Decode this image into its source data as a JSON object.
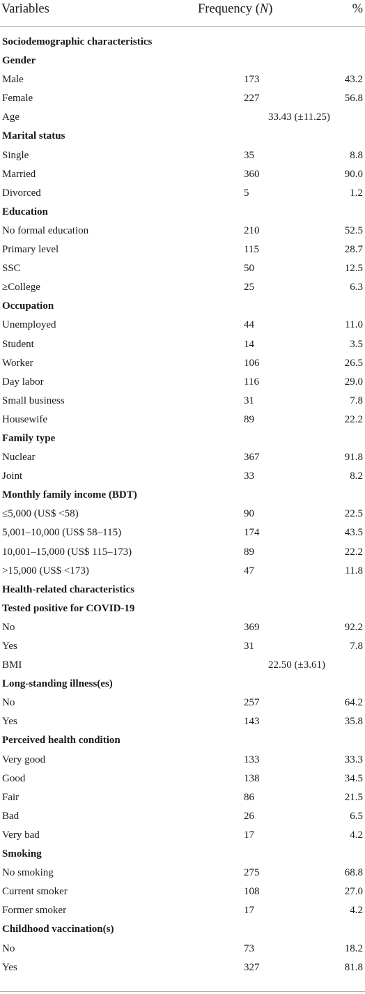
{
  "header": {
    "variables": "Variables",
    "frequency": "Frequency (",
    "frequency_n": "N",
    "frequency_close": ")",
    "percent": "%"
  },
  "rows": [
    {
      "type": "section",
      "label": "Sociodemographic characteristics"
    },
    {
      "type": "group",
      "label": "Gender"
    },
    {
      "type": "data",
      "label": "Male",
      "n": "173",
      "pct": "43.2"
    },
    {
      "type": "data",
      "label": "Female",
      "n": "227",
      "pct": "56.8"
    },
    {
      "type": "groupval",
      "label": "Age",
      "value": "33.43 (±11.25)"
    },
    {
      "type": "group",
      "label": "Marital status"
    },
    {
      "type": "data",
      "label": "Single",
      "n": "35",
      "pct": "8.8"
    },
    {
      "type": "data",
      "label": "Married",
      "n": "360",
      "pct": "90.0"
    },
    {
      "type": "data",
      "label": "Divorced",
      "n": "5",
      "pct": "1.2"
    },
    {
      "type": "group",
      "label": "Education"
    },
    {
      "type": "data",
      "label": "No formal education",
      "n": "210",
      "pct": "52.5"
    },
    {
      "type": "data",
      "label": "Primary level",
      "n": "115",
      "pct": "28.7"
    },
    {
      "type": "data",
      "label": "SSC",
      "n": "50",
      "pct": "12.5"
    },
    {
      "type": "data",
      "label": "≥College",
      "n": "25",
      "pct": "6.3"
    },
    {
      "type": "group",
      "label": "Occupation"
    },
    {
      "type": "data",
      "label": "Unemployed",
      "n": "44",
      "pct": "11.0"
    },
    {
      "type": "data",
      "label": "Student",
      "n": "14",
      "pct": "3.5"
    },
    {
      "type": "data",
      "label": "Worker",
      "n": "106",
      "pct": "26.5"
    },
    {
      "type": "data",
      "label": "Day labor",
      "n": "116",
      "pct": "29.0"
    },
    {
      "type": "data",
      "label": "Small business",
      "n": "31",
      "pct": "7.8"
    },
    {
      "type": "data",
      "label": "Housewife",
      "n": "89",
      "pct": "22.2"
    },
    {
      "type": "group",
      "label": "Family type"
    },
    {
      "type": "data",
      "label": "Nuclear",
      "n": "367",
      "pct": "91.8"
    },
    {
      "type": "data",
      "label": "Joint",
      "n": "33",
      "pct": "8.2"
    },
    {
      "type": "group",
      "label": "Monthly family income (BDT)"
    },
    {
      "type": "data",
      "label": "≤5,000 (US$ <58)",
      "n": "90",
      "pct": "22.5"
    },
    {
      "type": "data",
      "label": "5,001–10,000 (US$ 58–115)",
      "n": "174",
      "pct": "43.5"
    },
    {
      "type": "data",
      "label": "10,001–15,000 (US$ 115–173)",
      "n": "89",
      "pct": "22.2"
    },
    {
      "type": "data",
      "label": ">15,000 (US$ <173)",
      "n": "47",
      "pct": "11.8"
    },
    {
      "type": "section",
      "label": "Health-related characteristics"
    },
    {
      "type": "group",
      "label": "Tested positive for COVID-19"
    },
    {
      "type": "data",
      "label": "No",
      "n": "369",
      "pct": "92.2"
    },
    {
      "type": "data",
      "label": "Yes",
      "n": "31",
      "pct": "7.8"
    },
    {
      "type": "groupval",
      "label": "BMI",
      "value": "22.50 (±3.61)"
    },
    {
      "type": "group",
      "label": "Long-standing illness(es)"
    },
    {
      "type": "data",
      "label": "No",
      "n": "257",
      "pct": "64.2"
    },
    {
      "type": "data",
      "label": "Yes",
      "n": "143",
      "pct": "35.8"
    },
    {
      "type": "group",
      "label": "Perceived health condition"
    },
    {
      "type": "data",
      "label": "Very good",
      "n": "133",
      "pct": "33.3"
    },
    {
      "type": "data",
      "label": "Good",
      "n": "138",
      "pct": "34.5"
    },
    {
      "type": "data",
      "label": "Fair",
      "n": "86",
      "pct": "21.5"
    },
    {
      "type": "data",
      "label": "Bad",
      "n": "26",
      "pct": "6.5"
    },
    {
      "type": "data",
      "label": "Very bad",
      "n": "17",
      "pct": "4.2"
    },
    {
      "type": "group",
      "label": "Smoking"
    },
    {
      "type": "data",
      "label": "No smoking",
      "n": "275",
      "pct": "68.8"
    },
    {
      "type": "data",
      "label": "Current smoker",
      "n": "108",
      "pct": "27.0"
    },
    {
      "type": "data",
      "label": "Former smoker",
      "n": "17",
      "pct": "4.2"
    },
    {
      "type": "group",
      "label": "Childhood vaccination(s)"
    },
    {
      "type": "data",
      "label": "No",
      "n": "73",
      "pct": "18.2"
    },
    {
      "type": "data",
      "label": "Yes",
      "n": "327",
      "pct": "81.8"
    }
  ]
}
